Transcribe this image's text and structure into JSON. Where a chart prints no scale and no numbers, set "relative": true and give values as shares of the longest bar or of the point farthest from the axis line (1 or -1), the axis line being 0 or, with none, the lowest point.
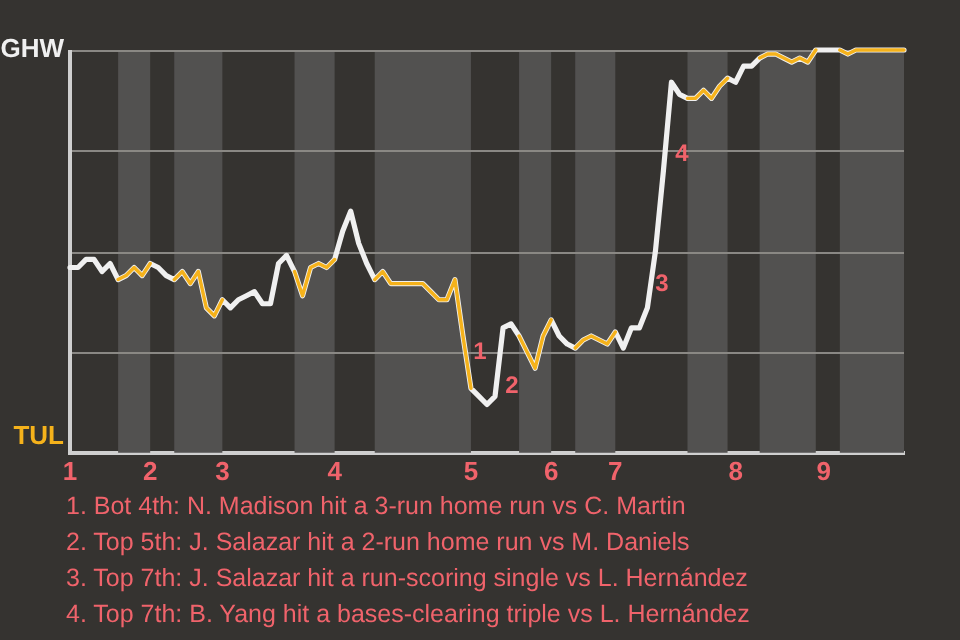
{
  "chart_data": {
    "type": "line",
    "relative": true,
    "legend": false,
    "marker": "none",
    "line_style": "solid",
    "categories": [
      "1",
      null,
      null,
      null,
      null,
      null,
      null,
      null,
      null,
      null,
      "2",
      null,
      null,
      null,
      null,
      null,
      null,
      null,
      null,
      "3",
      null,
      null,
      null,
      null,
      null,
      null,
      null,
      null,
      null,
      null,
      null,
      null,
      null,
      "4",
      null,
      null,
      null,
      null,
      null,
      null,
      null,
      null,
      null,
      null,
      null,
      null,
      null,
      null,
      null,
      null,
      "5",
      null,
      null,
      null,
      null,
      null,
      null,
      null,
      null,
      null,
      "6",
      null,
      null,
      null,
      null,
      null,
      null,
      null,
      "7",
      null,
      null,
      null,
      null,
      null,
      null,
      null,
      null,
      null,
      null,
      null,
      null,
      null,
      null,
      "8",
      null,
      null,
      null,
      null,
      null,
      null,
      null,
      null,
      null,
      null,
      "9",
      null,
      null,
      null,
      null,
      null,
      null,
      null,
      null,
      null,
      null
    ],
    "series": [
      {
        "color": "#f0f0f0",
        "values": [
          0.46,
          0.46,
          0.48,
          0.48,
          0.45,
          0.47,
          0.43,
          0.44,
          0.46,
          0.44,
          0.47,
          0.46,
          0.44,
          0.43,
          0.45,
          0.42,
          0.45,
          0.36,
          0.34,
          0.38,
          0.36,
          0.38,
          0.39,
          0.4,
          0.37,
          0.37,
          0.47,
          0.49,
          0.45,
          0.39,
          0.46,
          0.47,
          0.46,
          0.48,
          0.55,
          0.6,
          0.52,
          0.47,
          0.43,
          0.45,
          0.42,
          0.42,
          0.42,
          0.42,
          0.42,
          0.4,
          0.38,
          0.38,
          0.43,
          0.29,
          0.16,
          0.14,
          0.12,
          0.14,
          0.31,
          0.32,
          0.29,
          0.25,
          0.21,
          0.29,
          0.33,
          0.29,
          0.27,
          0.26,
          0.28,
          0.29,
          0.28,
          0.27,
          0.3,
          0.26,
          0.31,
          0.31,
          0.36,
          0.5,
          0.7,
          0.92,
          0.89,
          0.88,
          0.88,
          0.9,
          0.88,
          0.91,
          0.93,
          0.92,
          0.96,
          0.96,
          0.98,
          0.99,
          0.99,
          0.98,
          0.97,
          0.98,
          0.97,
          1,
          1,
          1,
          1,
          0.99,
          1,
          1,
          1,
          1,
          1,
          1,
          1
        ],
        "line_style": "solid"
      },
      {
        "color": "#f5b21b",
        "values": [
          null,
          null,
          null,
          null,
          null,
          null,
          0.43,
          0.44,
          0.46,
          0.44,
          0.47,
          null,
          null,
          0.43,
          0.45,
          0.42,
          0.45,
          0.36,
          0.34,
          0.38,
          null,
          null,
          null,
          null,
          null,
          null,
          null,
          null,
          0.45,
          0.39,
          0.46,
          0.47,
          0.46,
          0.48,
          null,
          null,
          null,
          null,
          0.43,
          0.45,
          0.42,
          0.42,
          0.42,
          0.42,
          0.42,
          0.4,
          0.38,
          0.38,
          0.43,
          0.29,
          0.16,
          null,
          null,
          null,
          null,
          null,
          0.29,
          0.25,
          0.21,
          0.29,
          0.33,
          null,
          null,
          0.26,
          0.28,
          0.29,
          0.28,
          0.27,
          0.3,
          null,
          null,
          null,
          null,
          null,
          null,
          null,
          null,
          0.88,
          0.88,
          0.9,
          0.88,
          0.91,
          0.93,
          null,
          null,
          null,
          0.98,
          0.99,
          0.99,
          0.98,
          0.97,
          0.98,
          0.97,
          1,
          null,
          null,
          1,
          0.99,
          1,
          1,
          1,
          1,
          1,
          1,
          1
        ]
      }
    ],
    "ref_lines": [
      {
        "axis": "y",
        "value": 0.25,
        "color": "#8a8884"
      },
      {
        "axis": "y",
        "value": 0.5,
        "color": "#8a8884"
      },
      {
        "axis": "y",
        "value": 0.75,
        "color": "#8a8884"
      },
      {
        "axis": "y",
        "value": 1,
        "color": "#8a8884"
      }
    ],
    "annotations": [
      "GHW",
      "TUL",
      "1",
      "2",
      "3",
      "4",
      "1. Bot 4th: N. Madison hit a 3-run home run vs C. Martin",
      "2. Top 5th: J. Salazar hit a 2-run home run vs M. Daniels",
      "3. Top 7th: J. Salazar hit a run-scoring single vs L. Hernández",
      "4. Top 7th: B. Yang hit a bases-clearing triple vs L. Hernández"
    ]
  }
}
